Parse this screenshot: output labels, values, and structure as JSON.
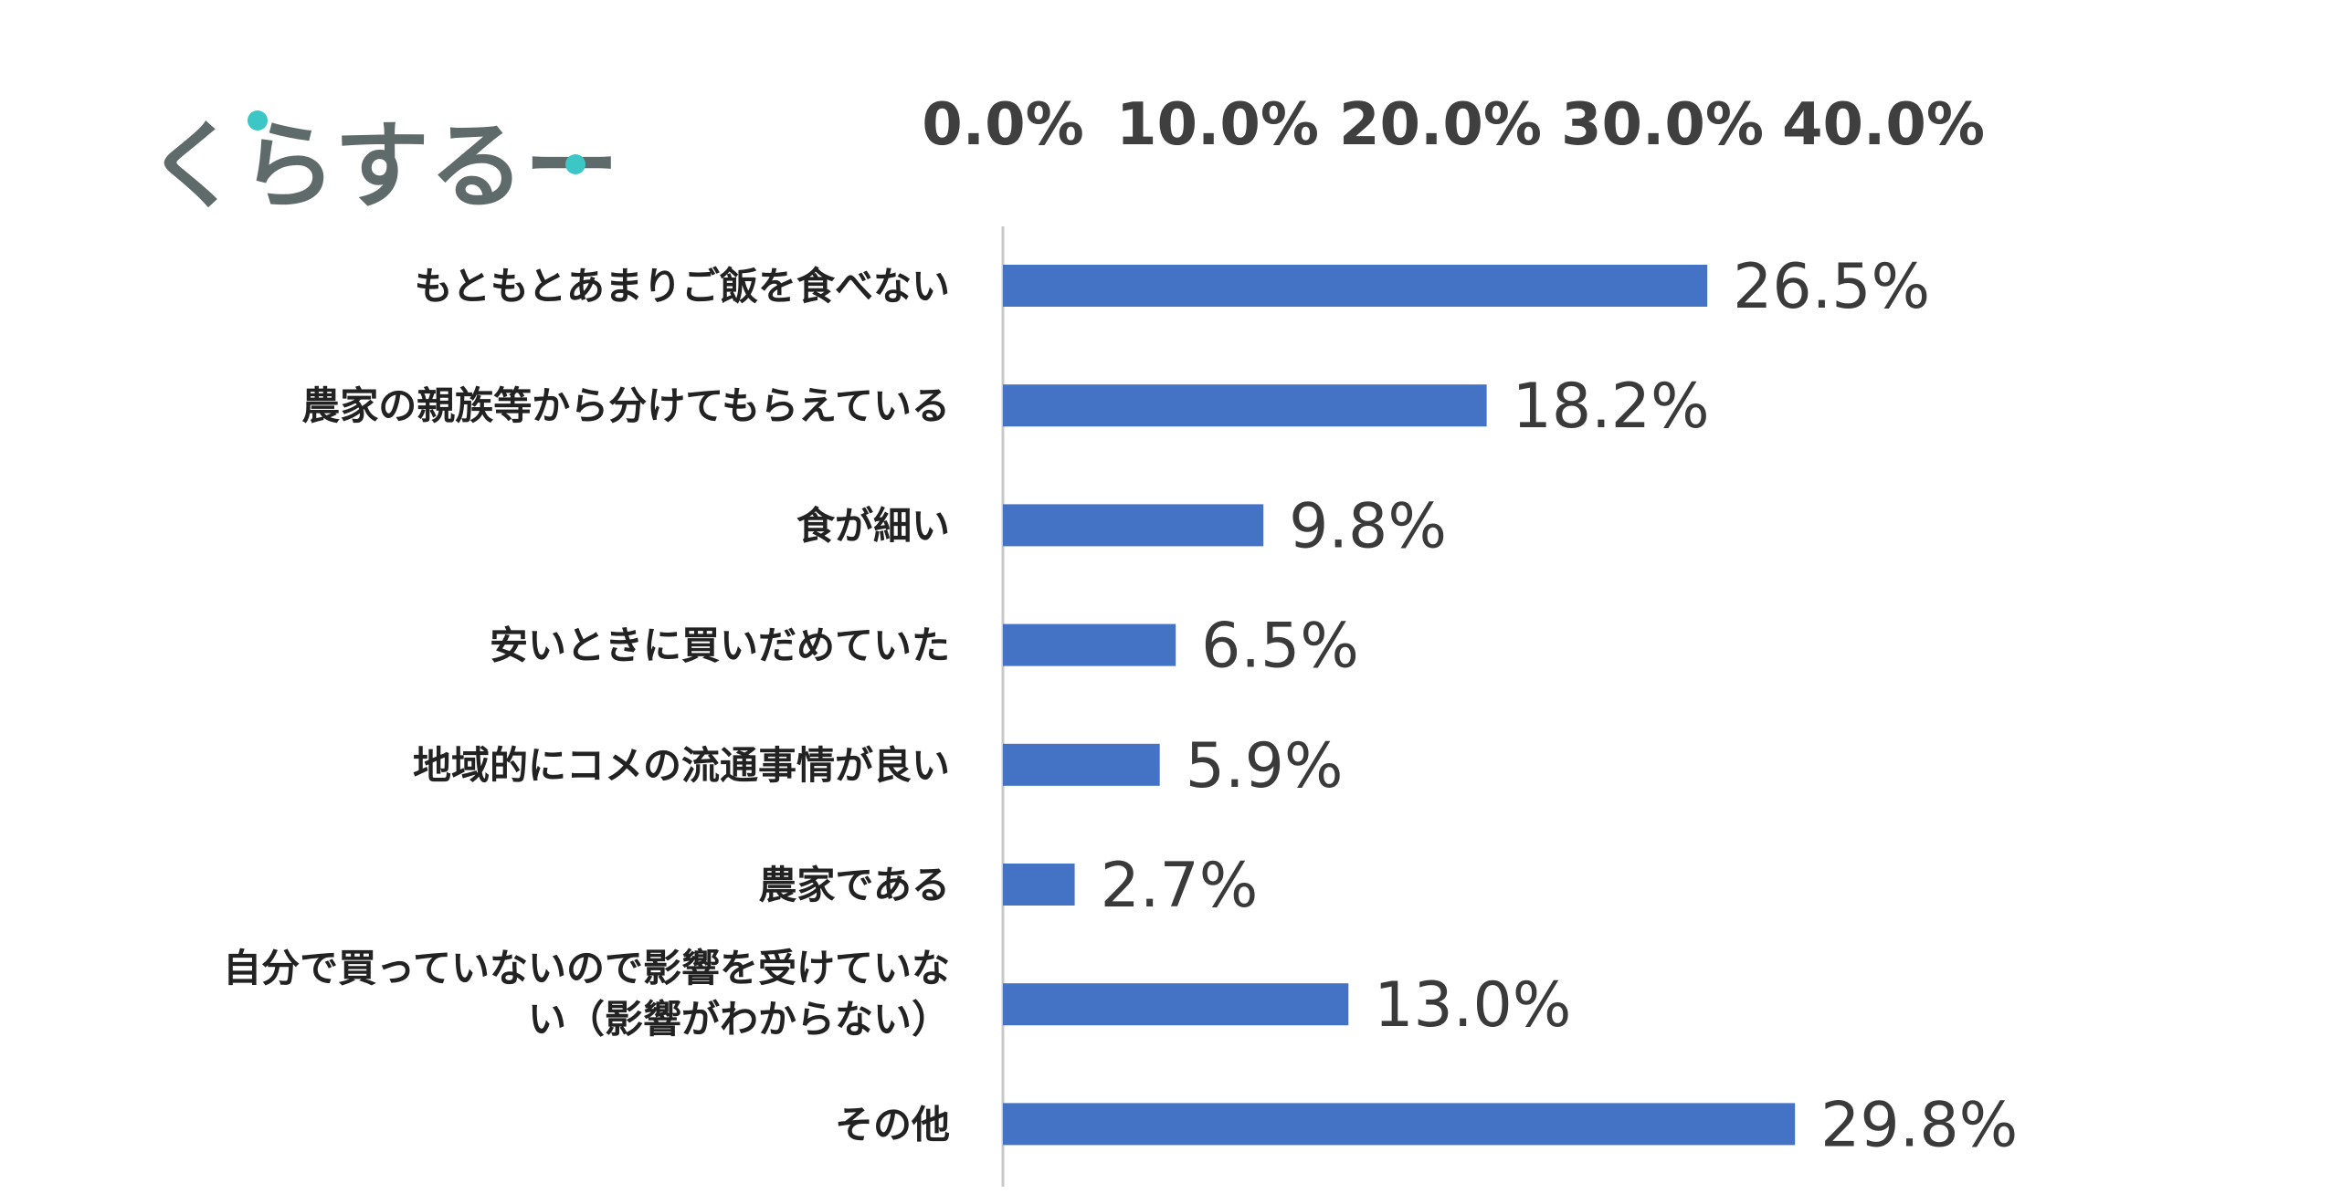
{
  "brand": {
    "logo_text": "くらするーむ",
    "text_color": "#5f6b6b",
    "dot_color": "#3cc6c6"
  },
  "chart_data": {
    "type": "bar",
    "orientation": "horizontal",
    "xlim": [
      0,
      40
    ],
    "ticks": [
      "0.0%",
      "10.0%",
      "20.0%",
      "30.0%",
      "40.0%"
    ],
    "axis_position": "top",
    "bar_color": "#4472c4",
    "grid": false,
    "categories": [
      [
        "もともとあまりご飯を食べない"
      ],
      [
        "農家の親族等から分けてもらえている"
      ],
      [
        "食が細い"
      ],
      [
        "安いときに買いだめていた"
      ],
      [
        "地域的にコメの流通事情が良い"
      ],
      [
        "農家である"
      ],
      [
        "自分で買っていないので影響を受けていな",
        "い（影響がわからない）"
      ],
      [
        "その他"
      ]
    ],
    "values": [
      26.5,
      18.2,
      9.8,
      6.5,
      5.9,
      2.7,
      13.0,
      29.8
    ],
    "value_labels": [
      "26.5%",
      "18.2%",
      "9.8%",
      "6.5%",
      "5.9%",
      "2.7%",
      "13.0%",
      "29.8%"
    ]
  }
}
